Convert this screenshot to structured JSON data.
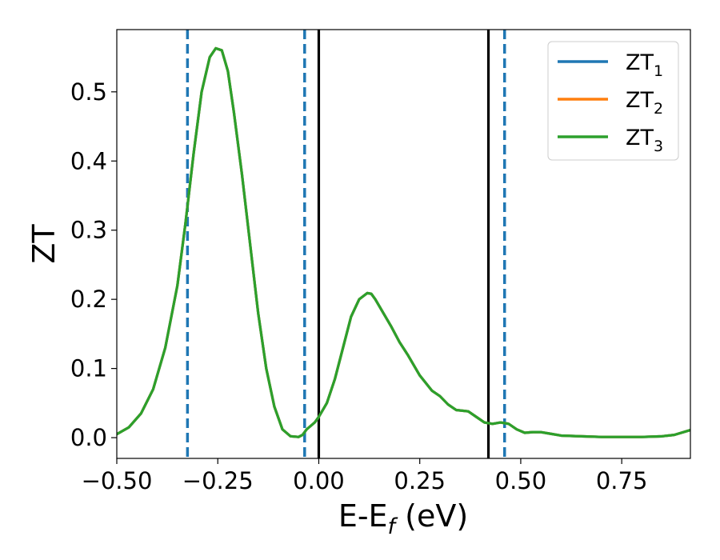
{
  "chart_data": {
    "type": "line",
    "xlabel": "E-E",
    "xlabel_subscript": "f",
    "xlabel_unit": " (eV)",
    "ylabel": "ZT",
    "xlim": [
      -0.5,
      0.92
    ],
    "ylim": [
      -0.03,
      0.59
    ],
    "x_ticks": [
      -0.5,
      -0.25,
      0.0,
      0.25,
      0.5,
      0.75
    ],
    "x_tick_labels": [
      "−0.50",
      "−0.25",
      "0.00",
      "0.25",
      "0.50",
      "0.75"
    ],
    "y_ticks": [
      0.0,
      0.1,
      0.2,
      0.3,
      0.4,
      0.5
    ],
    "y_tick_labels": [
      "0.0",
      "0.1",
      "0.2",
      "0.3",
      "0.4",
      "0.5"
    ],
    "grid": false,
    "legend_position": "top-right",
    "x": [
      -0.5,
      -0.47,
      -0.44,
      -0.41,
      -0.38,
      -0.35,
      -0.33,
      -0.31,
      -0.29,
      -0.27,
      -0.255,
      -0.24,
      -0.225,
      -0.21,
      -0.19,
      -0.17,
      -0.15,
      -0.13,
      -0.11,
      -0.09,
      -0.07,
      -0.05,
      -0.04,
      -0.03,
      -0.01,
      0.0,
      0.02,
      0.04,
      0.06,
      0.08,
      0.1,
      0.12,
      0.13,
      0.14,
      0.16,
      0.18,
      0.2,
      0.22,
      0.25,
      0.28,
      0.3,
      0.32,
      0.34,
      0.37,
      0.39,
      0.41,
      0.43,
      0.45,
      0.47,
      0.49,
      0.51,
      0.53,
      0.55,
      0.57,
      0.6,
      0.65,
      0.7,
      0.75,
      0.8,
      0.85,
      0.88,
      0.92
    ],
    "series": [
      {
        "name": "ZT",
        "name_subscript": "1",
        "color": "#1f77b4",
        "values": [
          0.005,
          0.015,
          0.035,
          0.07,
          0.13,
          0.22,
          0.31,
          0.41,
          0.5,
          0.55,
          0.563,
          0.56,
          0.53,
          0.47,
          0.38,
          0.28,
          0.18,
          0.1,
          0.045,
          0.012,
          0.002,
          0.001,
          0.004,
          0.012,
          0.022,
          0.03,
          0.05,
          0.085,
          0.13,
          0.175,
          0.2,
          0.209,
          0.208,
          0.2,
          0.18,
          0.16,
          0.138,
          0.12,
          0.09,
          0.068,
          0.06,
          0.048,
          0.04,
          0.038,
          0.03,
          0.022,
          0.02,
          0.022,
          0.02,
          0.012,
          0.007,
          0.008,
          0.008,
          0.006,
          0.003,
          0.002,
          0.001,
          0.001,
          0.001,
          0.002,
          0.004,
          0.011
        ]
      },
      {
        "name": "ZT",
        "name_subscript": "2",
        "color": "#ff7f0e",
        "values": [
          0.005,
          0.015,
          0.035,
          0.07,
          0.13,
          0.22,
          0.31,
          0.41,
          0.5,
          0.55,
          0.563,
          0.56,
          0.53,
          0.47,
          0.38,
          0.28,
          0.18,
          0.1,
          0.045,
          0.012,
          0.002,
          0.001,
          0.004,
          0.012,
          0.022,
          0.03,
          0.05,
          0.085,
          0.13,
          0.175,
          0.2,
          0.209,
          0.208,
          0.2,
          0.18,
          0.16,
          0.138,
          0.12,
          0.09,
          0.068,
          0.06,
          0.048,
          0.04,
          0.038,
          0.03,
          0.022,
          0.02,
          0.022,
          0.02,
          0.012,
          0.007,
          0.008,
          0.008,
          0.006,
          0.003,
          0.002,
          0.001,
          0.001,
          0.001,
          0.002,
          0.004,
          0.011
        ]
      },
      {
        "name": "ZT",
        "name_subscript": "3",
        "color": "#2ca02c",
        "values": [
          0.005,
          0.015,
          0.035,
          0.07,
          0.13,
          0.22,
          0.31,
          0.41,
          0.5,
          0.55,
          0.563,
          0.56,
          0.53,
          0.47,
          0.38,
          0.28,
          0.18,
          0.1,
          0.045,
          0.012,
          0.002,
          0.001,
          0.004,
          0.012,
          0.022,
          0.03,
          0.05,
          0.085,
          0.13,
          0.175,
          0.2,
          0.209,
          0.208,
          0.2,
          0.18,
          0.16,
          0.138,
          0.12,
          0.09,
          0.068,
          0.06,
          0.048,
          0.04,
          0.038,
          0.03,
          0.022,
          0.02,
          0.022,
          0.02,
          0.012,
          0.007,
          0.008,
          0.008,
          0.006,
          0.003,
          0.002,
          0.001,
          0.001,
          0.001,
          0.002,
          0.004,
          0.011
        ]
      }
    ],
    "vertical_lines": [
      {
        "x": -0.325,
        "style": "dashed",
        "color": "#1f77b4"
      },
      {
        "x": -0.035,
        "style": "dashed",
        "color": "#1f77b4"
      },
      {
        "x": 0.0,
        "style": "solid",
        "color": "#000000"
      },
      {
        "x": 0.42,
        "style": "solid",
        "color": "#000000"
      },
      {
        "x": 0.46,
        "style": "dashed",
        "color": "#1f77b4"
      }
    ]
  }
}
